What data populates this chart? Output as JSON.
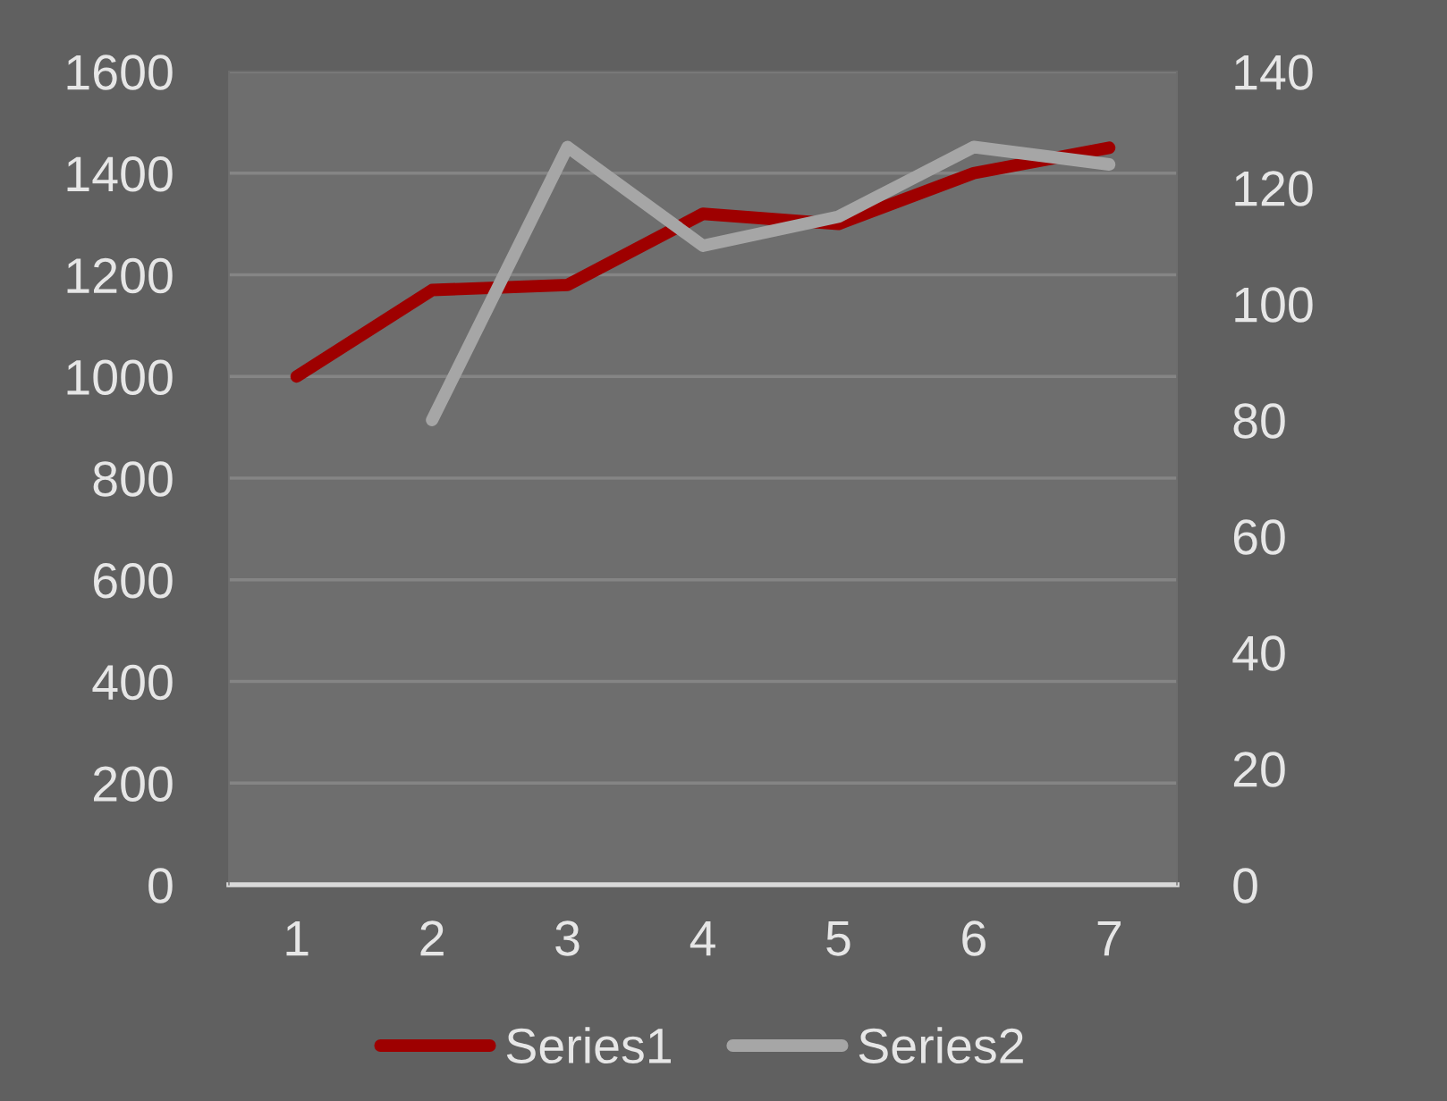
{
  "chart_data": {
    "type": "line",
    "categories": [
      "1",
      "2",
      "3",
      "4",
      "5",
      "6",
      "7"
    ],
    "series": [
      {
        "name": "Series1",
        "color": "#9e0000",
        "values": [
          1000,
          1170,
          1180,
          1320,
          1300,
          1400,
          1450
        ]
      },
      {
        "name": "Series2",
        "color": "#a6a6a6",
        "axis": "y2",
        "values": [
          null,
          80,
          127,
          110,
          115,
          127,
          124
        ]
      }
    ],
    "ylim": [
      0,
      1600
    ],
    "yticks": [
      0,
      200,
      400,
      600,
      800,
      1000,
      1200,
      1400,
      1600
    ],
    "y2lim": [
      0,
      140
    ],
    "y2ticks": [
      0,
      20,
      40,
      60,
      80,
      100,
      120,
      140
    ],
    "grid": "y",
    "legend": "bottom",
    "line_style": "solid",
    "marker": "none"
  }
}
